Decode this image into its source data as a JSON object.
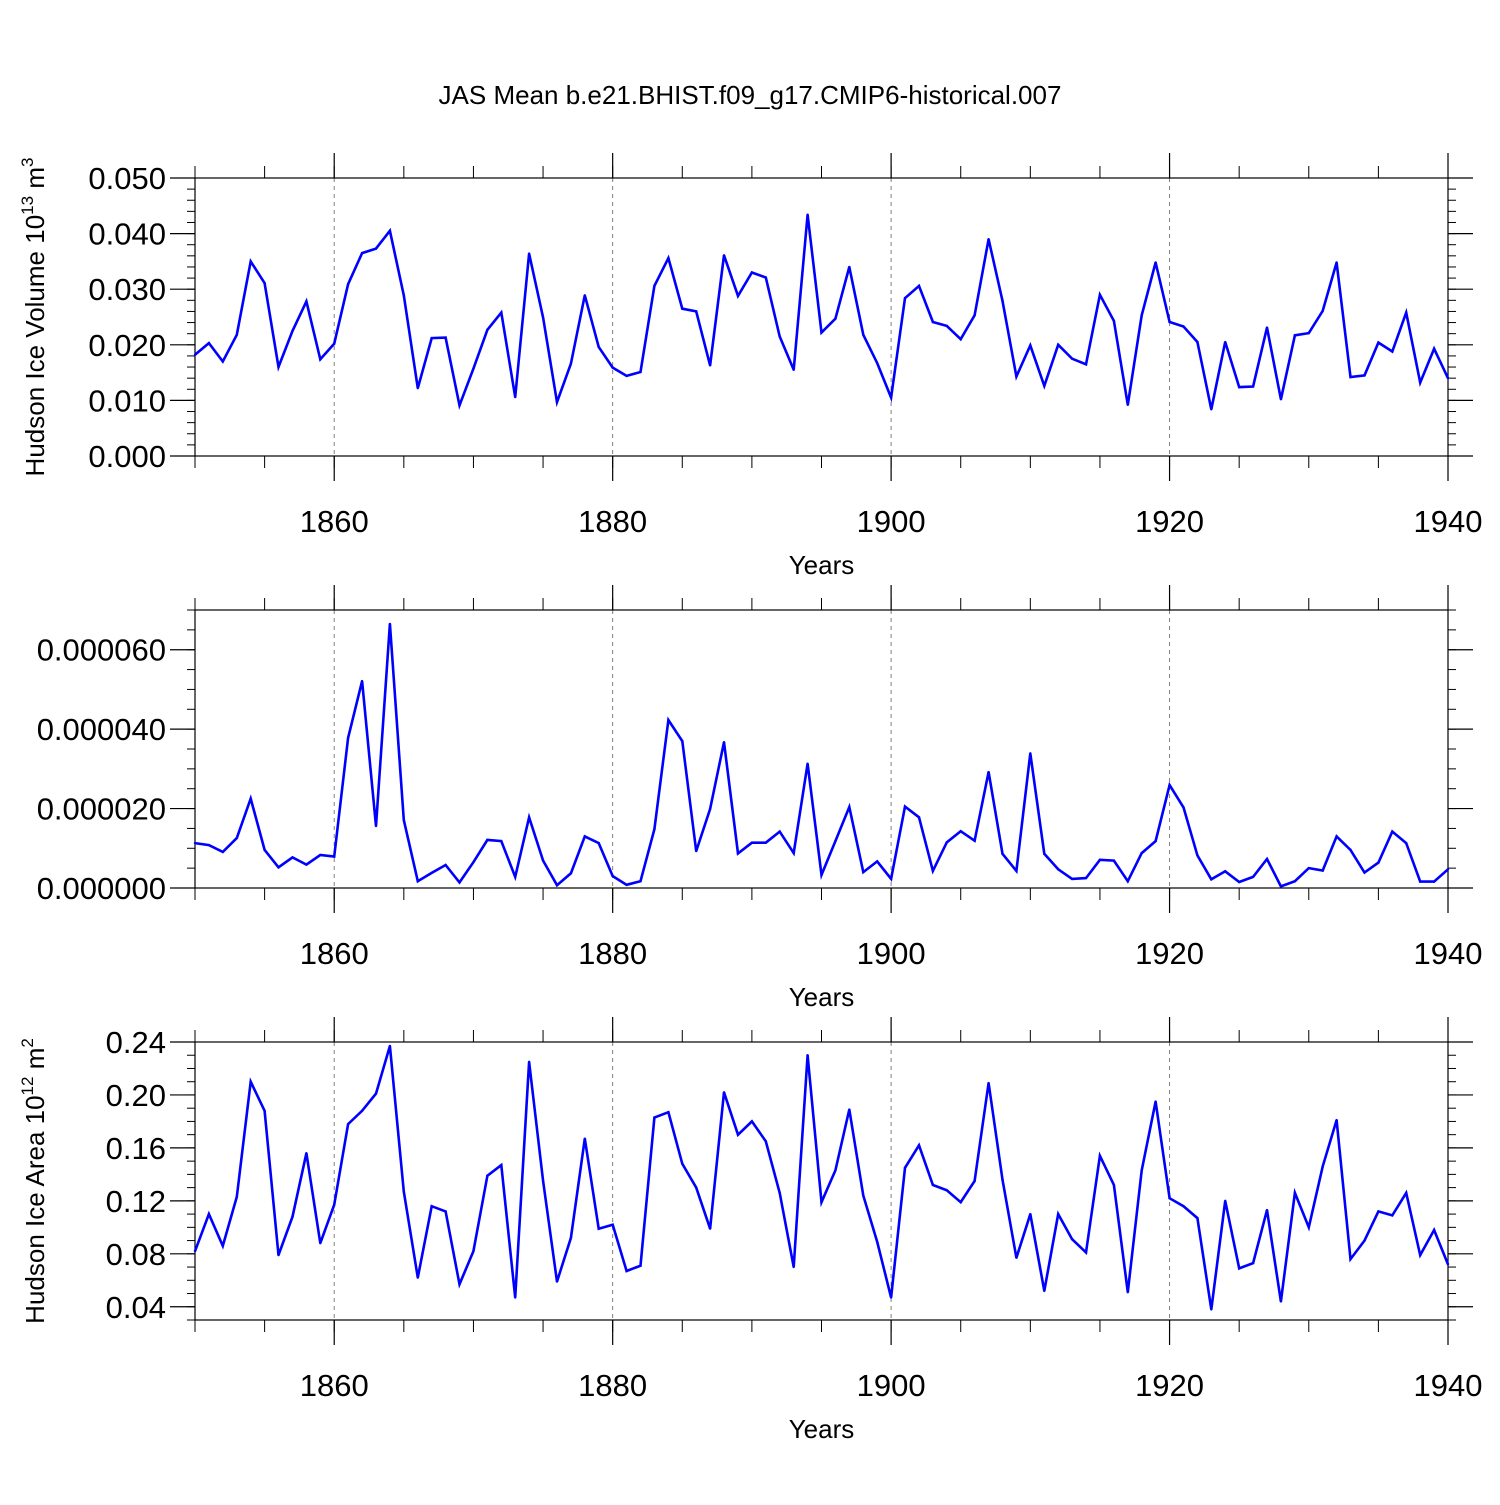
{
  "title": "JAS Mean b.e21.BHIST.f09_g17.CMIP6-historical.007",
  "colors": {
    "series": "#0000ff",
    "axis": "#000000",
    "grid": "#808080"
  },
  "chart_data": [
    {
      "type": "line",
      "name": "ice-volume",
      "ylabel": "Hudson Ice Volume 10",
      "ylabel_exp": "13",
      "ylabel_unit": " m",
      "ylabel_unit_exp": "3",
      "xlabel": "Years",
      "xlim": [
        1850,
        1940
      ],
      "ylim": [
        0.0,
        0.05
      ],
      "xticks": [
        1860,
        1880,
        1900,
        1920,
        1940
      ],
      "xtick_labels": [
        "1860",
        "1880",
        "1900",
        "1920",
        "1940"
      ],
      "yticks": [
        0.0,
        0.01,
        0.02,
        0.03,
        0.04,
        0.05
      ],
      "ytick_labels": [
        "0.000",
        "0.010",
        "0.020",
        "0.030",
        "0.040",
        "0.050"
      ],
      "yminor_step": 0.002,
      "xminor_step": 5,
      "x": [
        1850,
        1851,
        1852,
        1853,
        1854,
        1855,
        1856,
        1857,
        1858,
        1859,
        1860,
        1861,
        1862,
        1863,
        1864,
        1865,
        1866,
        1867,
        1868,
        1869,
        1870,
        1871,
        1872,
        1873,
        1874,
        1875,
        1876,
        1877,
        1878,
        1879,
        1880,
        1881,
        1882,
        1883,
        1884,
        1885,
        1886,
        1887,
        1888,
        1889,
        1890,
        1891,
        1892,
        1893,
        1894,
        1895,
        1896,
        1897,
        1898,
        1899,
        1900,
        1901,
        1902,
        1903,
        1904,
        1905,
        1906,
        1907,
        1908,
        1909,
        1910,
        1911,
        1912,
        1913,
        1914,
        1915,
        1916,
        1917,
        1918,
        1919,
        1920,
        1921,
        1922,
        1923,
        1924,
        1925,
        1926,
        1927,
        1928,
        1929,
        1930,
        1931,
        1932,
        1933,
        1934,
        1935,
        1936,
        1937,
        1938,
        1939,
        1940
      ],
      "values": [
        0.0182,
        0.0203,
        0.017,
        0.0218,
        0.035,
        0.0311,
        0.016,
        0.0225,
        0.0278,
        0.0174,
        0.0202,
        0.0309,
        0.0365,
        0.0373,
        0.0405,
        0.0289,
        0.0122,
        0.0212,
        0.0213,
        0.0091,
        0.0157,
        0.0227,
        0.0258,
        0.0106,
        0.0364,
        0.0249,
        0.0097,
        0.0166,
        0.0289,
        0.0196,
        0.0159,
        0.0144,
        0.0151,
        0.0306,
        0.0356,
        0.0265,
        0.026,
        0.0163,
        0.0361,
        0.0288,
        0.033,
        0.0321,
        0.0215,
        0.0155,
        0.0434,
        0.0222,
        0.0247,
        0.034,
        0.0218,
        0.0167,
        0.0105,
        0.0284,
        0.0306,
        0.0241,
        0.0234,
        0.021,
        0.0253,
        0.039,
        0.0279,
        0.0143,
        0.0199,
        0.0126,
        0.02,
        0.0175,
        0.0165,
        0.029,
        0.0243,
        0.0092,
        0.0253,
        0.0348,
        0.0241,
        0.0233,
        0.0205,
        0.0084,
        0.0205,
        0.0124,
        0.0125,
        0.0231,
        0.0102,
        0.0217,
        0.0221,
        0.0261,
        0.0348,
        0.0142,
        0.0145,
        0.0204,
        0.0188,
        0.0258,
        0.0132,
        0.0193,
        0.014
      ]
    },
    {
      "type": "line",
      "name": "middle-series",
      "ylabel": "",
      "xlabel": "Years",
      "xlim": [
        1850,
        1940
      ],
      "ylim": [
        0.0,
        7e-05
      ],
      "xticks": [
        1860,
        1880,
        1900,
        1920,
        1940
      ],
      "xtick_labels": [
        "1860",
        "1880",
        "1900",
        "1920",
        "1940"
      ],
      "yticks": [
        0.0,
        2e-05,
        4e-05,
        6e-05
      ],
      "ytick_labels": [
        "0.000000",
        "0.000020",
        "0.000040",
        "0.000060"
      ],
      "yminor_step": 5e-06,
      "xminor_step": 5,
      "x": [
        1850,
        1851,
        1852,
        1853,
        1854,
        1855,
        1856,
        1857,
        1858,
        1859,
        1860,
        1861,
        1862,
        1863,
        1864,
        1865,
        1866,
        1867,
        1868,
        1869,
        1870,
        1871,
        1872,
        1873,
        1874,
        1875,
        1876,
        1877,
        1878,
        1879,
        1880,
        1881,
        1882,
        1883,
        1884,
        1885,
        1886,
        1887,
        1888,
        1889,
        1890,
        1891,
        1892,
        1893,
        1894,
        1895,
        1896,
        1897,
        1898,
        1899,
        1900,
        1901,
        1902,
        1903,
        1904,
        1905,
        1906,
        1907,
        1908,
        1909,
        1910,
        1911,
        1912,
        1913,
        1914,
        1915,
        1916,
        1917,
        1918,
        1919,
        1920,
        1921,
        1922,
        1923,
        1924,
        1925,
        1926,
        1927,
        1928,
        1929,
        1930,
        1931,
        1932,
        1933,
        1934,
        1935,
        1936,
        1937,
        1938,
        1939,
        1940
      ],
      "values": [
        1.13e-05,
        1.08e-05,
        9.1e-06,
        1.26e-05,
        2.25e-05,
        9.6e-06,
        5.2e-06,
        7.7e-06,
        5.9e-06,
        8.3e-06,
        7.9e-06,
        3.78e-05,
        5.21e-05,
        1.56e-05,
        6.65e-05,
        1.71e-05,
        1.7e-06,
        3.8e-06,
        5.8e-06,
        1.4e-06,
        6.5e-06,
        1.21e-05,
        1.18e-05,
        2.8e-06,
        1.78e-05,
        6.9e-06,
        7e-07,
        3.7e-06,
        1.3e-05,
        1.13e-05,
        3e-06,
        8e-07,
        1.7e-06,
        1.48e-05,
        4.23e-05,
        3.7e-05,
        9.3e-06,
        1.99e-05,
        3.67e-05,
        8.7e-06,
        1.14e-05,
        1.14e-05,
        1.42e-05,
        8.8e-06,
        3.13e-05,
        3.3e-06,
        1.18e-05,
        2.04e-05,
        4e-06,
        6.7e-06,
        2.3e-06,
        2.05e-05,
        1.78e-05,
        4.3e-06,
        1.15e-05,
        1.43e-05,
        1.19e-05,
        2.92e-05,
        8.6e-06,
        4.3e-06,
        3.39e-05,
        8.6e-06,
        4.7e-06,
        2.3e-06,
        2.5e-06,
        7.1e-06,
        6.9e-06,
        1.7e-06,
        8.8e-06,
        1.18e-05,
        2.59e-05,
        2.03e-05,
        8.2e-06,
        2.2e-06,
        4.2e-06,
        1.5e-06,
        2.8e-06,
        7.3e-06,
        4e-07,
        1.7e-06,
        5e-06,
        4.4e-06,
        1.3e-05,
        9.6e-06,
        3.9e-06,
        6.4e-06,
        1.42e-05,
        1.13e-05,
        1.6e-06,
        1.6e-06,
        4.7e-06
      ]
    },
    {
      "type": "line",
      "name": "ice-area",
      "ylabel": "Hudson Ice Area 10",
      "ylabel_exp": "12",
      "ylabel_unit": " m",
      "ylabel_unit_exp": "2",
      "xlabel": "Years",
      "xlim": [
        1850,
        1940
      ],
      "ylim": [
        0.03,
        0.24
      ],
      "xticks": [
        1860,
        1880,
        1900,
        1920,
        1940
      ],
      "xtick_labels": [
        "1860",
        "1880",
        "1900",
        "1920",
        "1940"
      ],
      "yticks": [
        0.04,
        0.08,
        0.12,
        0.16,
        0.2,
        0.24
      ],
      "ytick_labels": [
        "0.04",
        "0.08",
        "0.12",
        "0.16",
        "0.20",
        "0.24"
      ],
      "yminor_step": 0.01,
      "xminor_step": 5,
      "x": [
        1850,
        1851,
        1852,
        1853,
        1854,
        1855,
        1856,
        1857,
        1858,
        1859,
        1860,
        1861,
        1862,
        1863,
        1864,
        1865,
        1866,
        1867,
        1868,
        1869,
        1870,
        1871,
        1872,
        1873,
        1874,
        1875,
        1876,
        1877,
        1878,
        1879,
        1880,
        1881,
        1882,
        1883,
        1884,
        1885,
        1886,
        1887,
        1888,
        1889,
        1890,
        1891,
        1892,
        1893,
        1894,
        1895,
        1896,
        1897,
        1898,
        1899,
        1900,
        1901,
        1902,
        1903,
        1904,
        1905,
        1906,
        1907,
        1908,
        1909,
        1910,
        1911,
        1912,
        1913,
        1914,
        1915,
        1916,
        1917,
        1918,
        1919,
        1920,
        1921,
        1922,
        1923,
        1924,
        1925,
        1926,
        1927,
        1928,
        1929,
        1930,
        1931,
        1932,
        1933,
        1934,
        1935,
        1936,
        1937,
        1938,
        1939,
        1940
      ],
      "values": [
        0.082,
        0.11,
        0.086,
        0.123,
        0.21,
        0.188,
        0.079,
        0.108,
        0.156,
        0.088,
        0.117,
        0.178,
        0.188,
        0.201,
        0.237,
        0.127,
        0.062,
        0.116,
        0.112,
        0.057,
        0.082,
        0.139,
        0.147,
        0.047,
        0.225,
        0.135,
        0.059,
        0.092,
        0.167,
        0.099,
        0.102,
        0.067,
        0.071,
        0.183,
        0.187,
        0.148,
        0.13,
        0.099,
        0.202,
        0.17,
        0.18,
        0.165,
        0.126,
        0.07,
        0.23,
        0.119,
        0.143,
        0.189,
        0.124,
        0.089,
        0.047,
        0.145,
        0.162,
        0.132,
        0.128,
        0.119,
        0.135,
        0.209,
        0.136,
        0.077,
        0.11,
        0.052,
        0.11,
        0.091,
        0.081,
        0.154,
        0.132,
        0.051,
        0.143,
        0.195,
        0.122,
        0.116,
        0.107,
        0.038,
        0.12,
        0.069,
        0.073,
        0.113,
        0.044,
        0.126,
        0.1,
        0.146,
        0.181,
        0.076,
        0.09,
        0.112,
        0.109,
        0.126,
        0.079,
        0.098,
        0.072
      ]
    }
  ]
}
